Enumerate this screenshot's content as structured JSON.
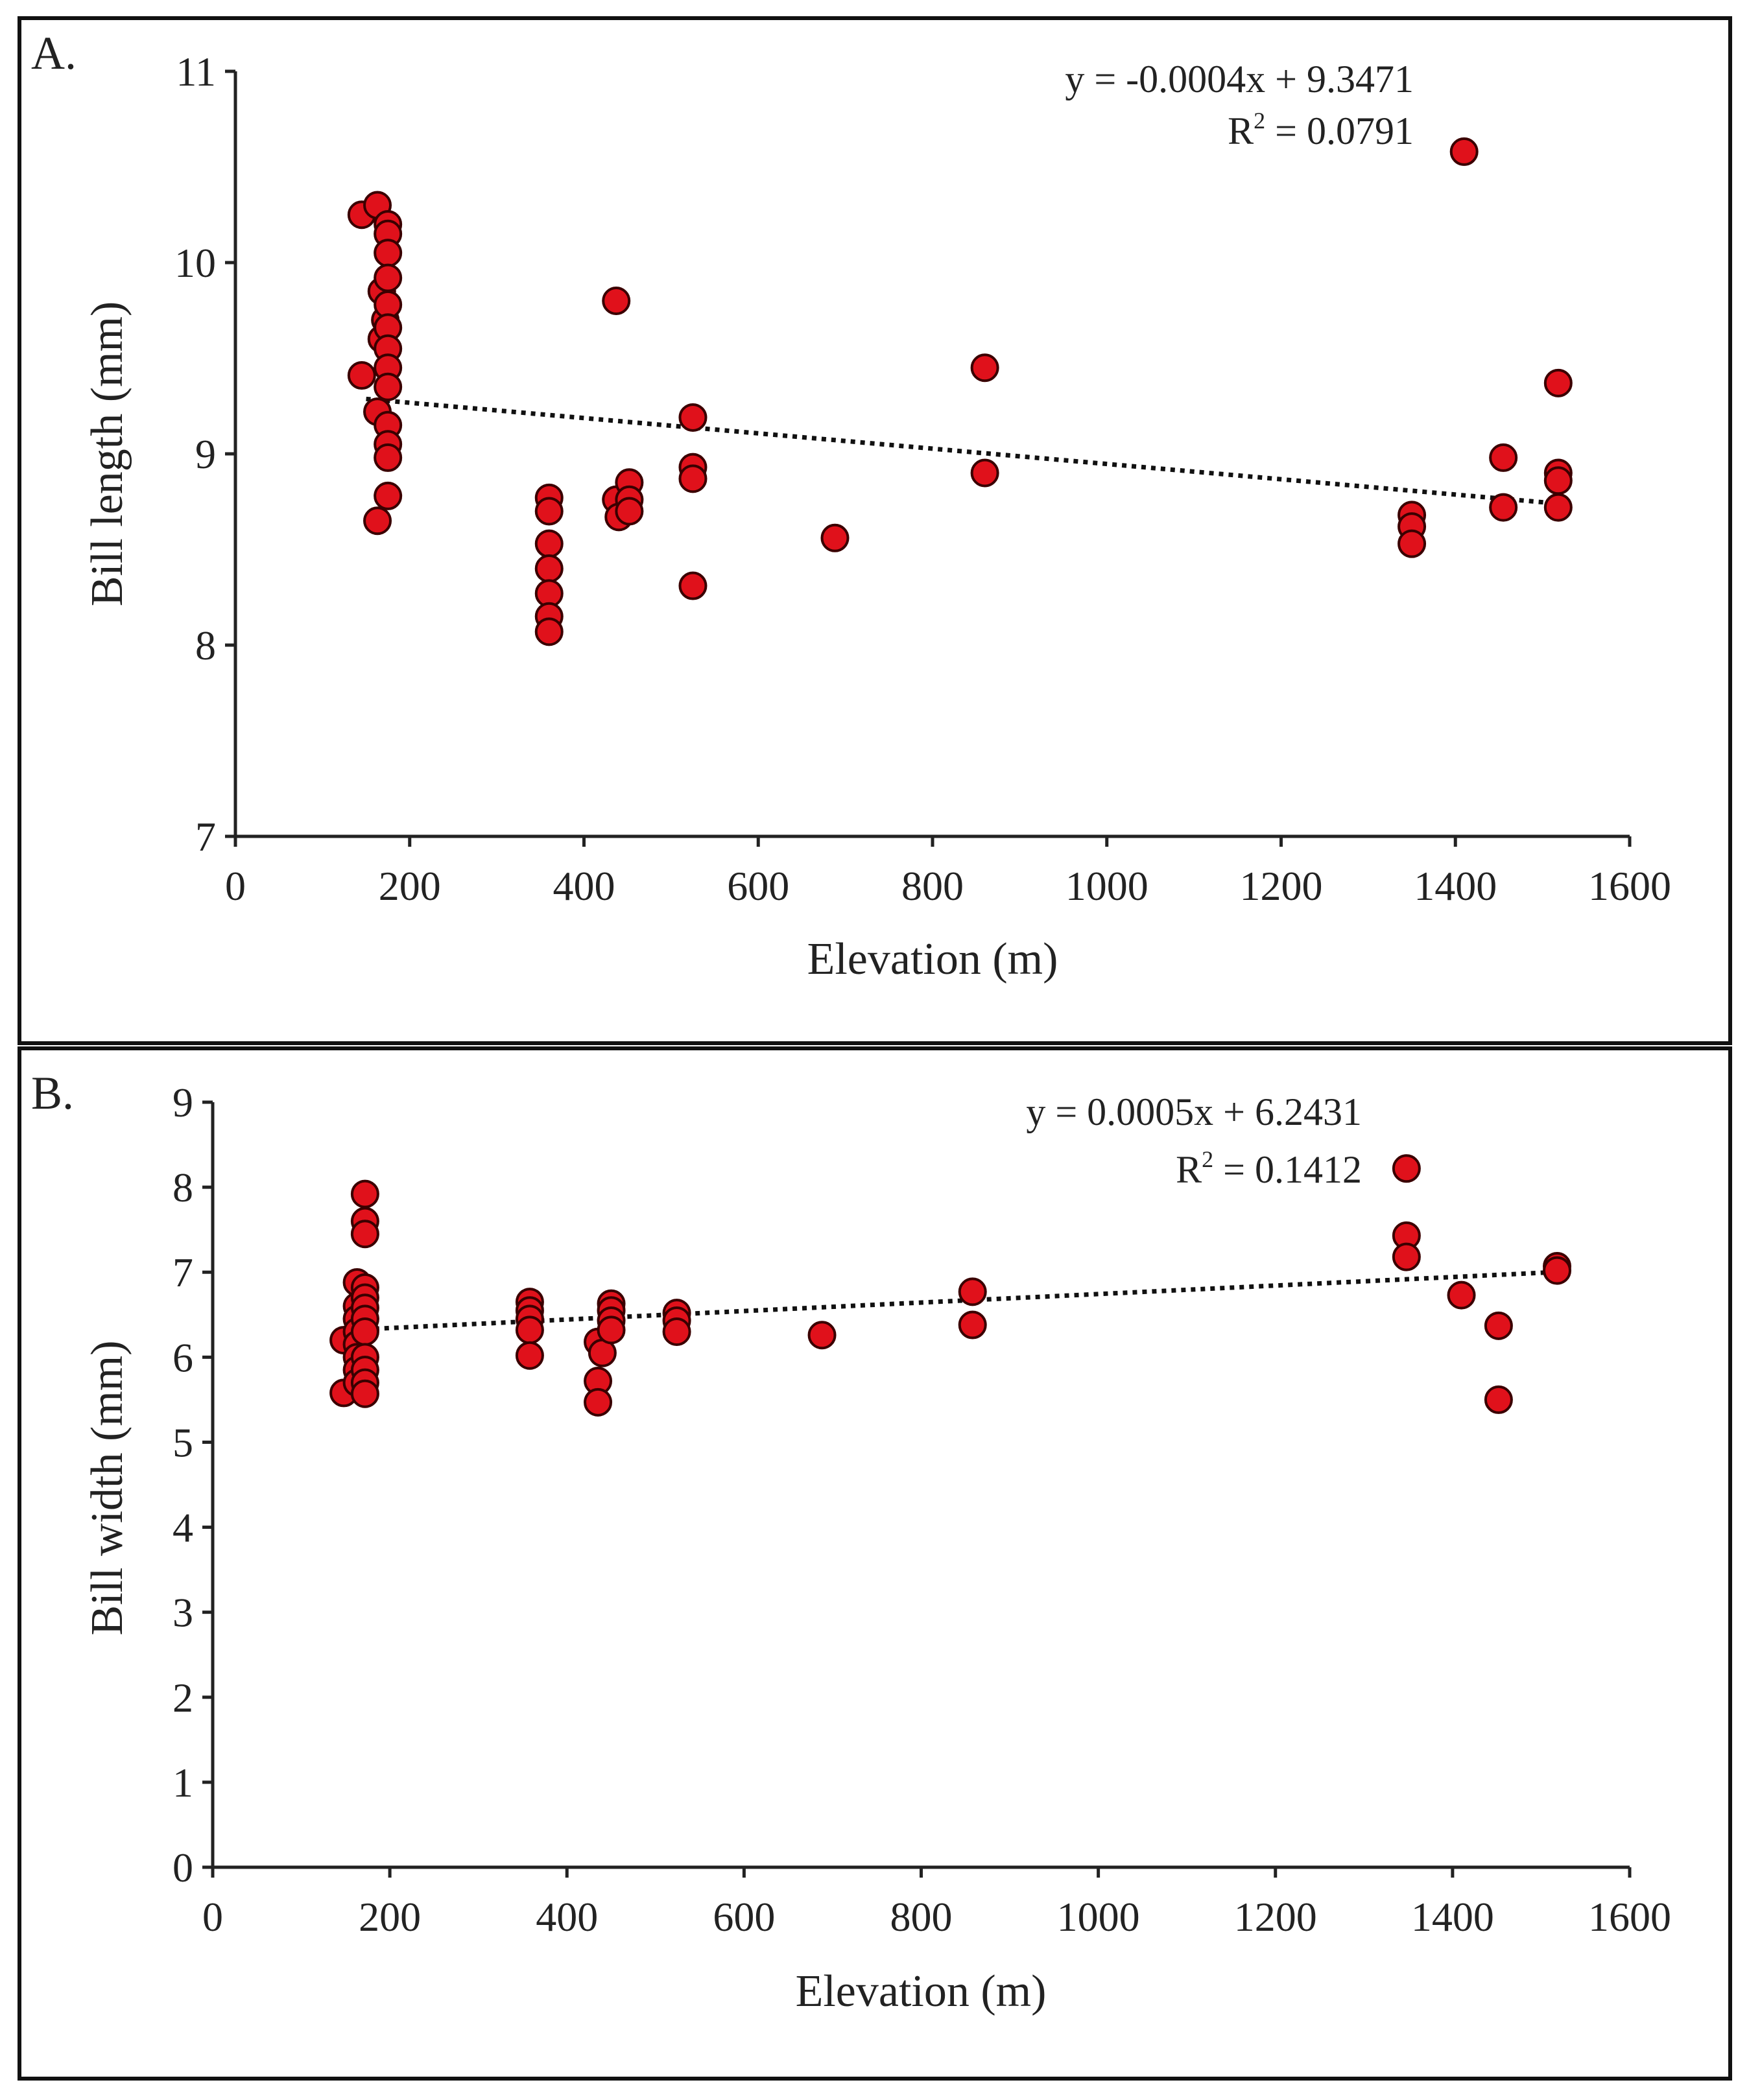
{
  "chart_data": [
    {
      "type": "scatter",
      "panel_label": "A.",
      "xlabel": "Elevation (m)",
      "ylabel": "Bill length (mm)",
      "xlim": [
        0,
        1600
      ],
      "ylim": [
        7,
        11
      ],
      "xticks": [
        "0",
        "200",
        "400",
        "600",
        "800",
        "1000",
        "1200",
        "1400",
        "1600"
      ],
      "yticks": [
        "7",
        "8",
        "9",
        "10",
        "11"
      ],
      "equation": "y = -0.0004x + 9.3471",
      "r2_prefix": "R",
      "r2_sup": "2",
      "r2_value": " = 0.0791",
      "trendline": {
        "slope": -0.0004,
        "intercept": 9.3471,
        "x_start": 150,
        "x_end": 1520
      },
      "series": [
        {
          "name": "Bill length",
          "color": "#e0111b",
          "points": [
            [
              145,
              10.25
            ],
            [
              145,
              9.41
            ],
            [
              163,
              10.3
            ],
            [
              163,
              9.22
            ],
            [
              163,
              8.65
            ],
            [
              168,
              9.85
            ],
            [
              168,
              9.6
            ],
            [
              172,
              9.7
            ],
            [
              175,
              10.2
            ],
            [
              175,
              10.15
            ],
            [
              175,
              10.05
            ],
            [
              175,
              9.92
            ],
            [
              175,
              9.78
            ],
            [
              175,
              9.66
            ],
            [
              175,
              9.55
            ],
            [
              175,
              9.45
            ],
            [
              175,
              9.35
            ],
            [
              175,
              9.15
            ],
            [
              175,
              9.05
            ],
            [
              175,
              8.98
            ],
            [
              175,
              8.78
            ],
            [
              360,
              8.77
            ],
            [
              360,
              8.7
            ],
            [
              360,
              8.53
            ],
            [
              360,
              8.4
            ],
            [
              360,
              8.27
            ],
            [
              360,
              8.15
            ],
            [
              360,
              8.07
            ],
            [
              437,
              9.8
            ],
            [
              437,
              8.76
            ],
            [
              440,
              8.67
            ],
            [
              452,
              8.85
            ],
            [
              452,
              8.76
            ],
            [
              452,
              8.7
            ],
            [
              525,
              9.19
            ],
            [
              525,
              8.93
            ],
            [
              525,
              8.87
            ],
            [
              525,
              8.31
            ],
            [
              688,
              8.56
            ],
            [
              860,
              9.45
            ],
            [
              860,
              8.9
            ],
            [
              1350,
              8.68
            ],
            [
              1350,
              8.62
            ],
            [
              1350,
              8.53
            ],
            [
              1410,
              10.58
            ],
            [
              1455,
              8.98
            ],
            [
              1455,
              8.72
            ],
            [
              1518,
              9.37
            ],
            [
              1518,
              8.9
            ],
            [
              1518,
              8.86
            ],
            [
              1518,
              8.72
            ]
          ]
        }
      ]
    },
    {
      "type": "scatter",
      "panel_label": "B.",
      "xlabel": "Elevation (m)",
      "ylabel": "Bill width (mm)",
      "xlim": [
        0,
        1600
      ],
      "ylim": [
        0,
        9
      ],
      "xticks": [
        "0",
        "200",
        "400",
        "600",
        "800",
        "1000",
        "1200",
        "1400",
        "1600"
      ],
      "yticks": [
        "0",
        "1",
        "2",
        "3",
        "4",
        "5",
        "6",
        "7",
        "8",
        "9"
      ],
      "equation": "y = 0.0005x + 6.2431",
      "r2_prefix": "R",
      "r2_sup": "2",
      "r2_value": " = 0.1412",
      "trendline": {
        "slope": 0.0005,
        "intercept": 6.2431,
        "x_start": 150,
        "x_end": 1520
      },
      "series": [
        {
          "name": "Bill width",
          "color": "#e0111b",
          "points": [
            [
              148,
              6.2
            ],
            [
              148,
              5.58
            ],
            [
              163,
              6.88
            ],
            [
              163,
              6.6
            ],
            [
              163,
              6.45
            ],
            [
              163,
              6.3
            ],
            [
              163,
              6.15
            ],
            [
              163,
              6.0
            ],
            [
              163,
              5.85
            ],
            [
              163,
              5.7
            ],
            [
              172,
              7.92
            ],
            [
              172,
              7.6
            ],
            [
              172,
              7.45
            ],
            [
              172,
              6.82
            ],
            [
              172,
              6.7
            ],
            [
              172,
              6.58
            ],
            [
              172,
              6.45
            ],
            [
              172,
              6.3
            ],
            [
              172,
              6.0
            ],
            [
              172,
              5.85
            ],
            [
              172,
              5.7
            ],
            [
              172,
              5.57
            ],
            [
              358,
              6.65
            ],
            [
              358,
              6.55
            ],
            [
              358,
              6.45
            ],
            [
              358,
              6.32
            ],
            [
              358,
              6.02
            ],
            [
              435,
              6.18
            ],
            [
              435,
              5.72
            ],
            [
              435,
              5.47
            ],
            [
              440,
              6.05
            ],
            [
              450,
              6.63
            ],
            [
              450,
              6.55
            ],
            [
              450,
              6.43
            ],
            [
              450,
              6.32
            ],
            [
              524,
              6.52
            ],
            [
              524,
              6.43
            ],
            [
              524,
              6.3
            ],
            [
              688,
              6.26
            ],
            [
              858,
              6.77
            ],
            [
              858,
              6.38
            ],
            [
              1348,
              8.22
            ],
            [
              1348,
              7.43
            ],
            [
              1348,
              7.18
            ],
            [
              1410,
              6.73
            ],
            [
              1452,
              6.37
            ],
            [
              1452,
              5.5
            ],
            [
              1518,
              7.07
            ],
            [
              1518,
              7.02
            ]
          ]
        }
      ]
    }
  ]
}
